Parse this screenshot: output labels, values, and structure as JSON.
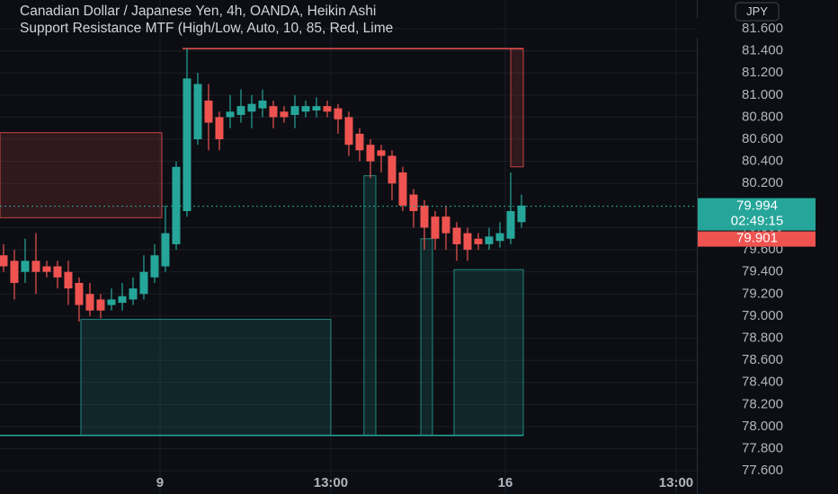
{
  "chart_data": {
    "type": "candlestick",
    "title": "Canadian Dollar / Japanese Yen, 4h, OANDA, Heikin Ashi",
    "subtitle": "Support Resistance MTF (High/Low, Auto, 10, 85, Red, Lime",
    "currency": "JPY",
    "up_color": "#26a69a",
    "down_color": "#ef5350",
    "open": [
      79.55,
      79.5,
      79.4,
      79.5,
      79.45,
      79.45,
      79.4,
      79.3,
      79.2,
      79.15,
      79.1,
      79.12,
      79.15,
      79.2,
      79.35,
      79.45,
      79.65,
      79.95,
      80.6,
      80.95,
      80.8,
      80.8,
      80.82,
      80.85,
      80.88,
      80.9,
      80.85,
      80.82,
      80.85,
      80.86,
      80.9,
      80.88,
      80.8,
      80.65,
      80.55,
      80.5,
      80.45,
      80.3,
      80.1,
      80.0,
      79.9,
      79.9,
      79.8,
      79.75,
      79.7,
      79.65,
      79.68,
      79.7,
      79.85
    ],
    "high": [
      79.65,
      79.6,
      79.7,
      79.75,
      79.5,
      79.5,
      79.5,
      79.35,
      79.3,
      79.2,
      79.25,
      79.3,
      79.35,
      79.55,
      79.65,
      80.0,
      80.4,
      81.42,
      81.2,
      81.1,
      80.85,
      81.0,
      81.05,
      81.0,
      81.05,
      80.95,
      80.9,
      81.0,
      80.95,
      80.98,
      80.95,
      80.92,
      80.85,
      80.7,
      80.6,
      80.55,
      80.5,
      80.35,
      80.15,
      80.05,
      79.95,
      80.0,
      79.85,
      79.8,
      79.75,
      79.8,
      79.85,
      80.3,
      80.1
    ],
    "low": [
      79.4,
      79.15,
      79.3,
      79.2,
      79.35,
      79.25,
      79.1,
      78.95,
      79.0,
      78.98,
      79.05,
      79.05,
      79.1,
      79.15,
      79.3,
      79.4,
      79.6,
      79.9,
      80.55,
      80.5,
      80.5,
      80.7,
      80.75,
      80.7,
      80.8,
      80.7,
      80.75,
      80.7,
      80.8,
      80.8,
      80.8,
      80.65,
      80.45,
      80.4,
      80.25,
      80.3,
      80.05,
      79.95,
      79.8,
      79.6,
      79.6,
      79.6,
      79.5,
      79.5,
      79.6,
      79.6,
      79.62,
      79.65,
      79.8
    ],
    "close": [
      79.45,
      79.3,
      79.5,
      79.4,
      79.4,
      79.35,
      79.25,
      79.1,
      79.05,
      79.05,
      79.15,
      79.18,
      79.25,
      79.4,
      79.55,
      79.75,
      80.35,
      81.15,
      81.1,
      80.75,
      80.6,
      80.85,
      80.9,
      80.92,
      80.95,
      80.8,
      80.8,
      80.9,
      80.9,
      80.9,
      80.85,
      80.78,
      80.55,
      80.5,
      80.4,
      80.45,
      80.2,
      80.0,
      79.95,
      79.8,
      79.7,
      79.75,
      79.65,
      79.6,
      79.65,
      79.72,
      79.75,
      79.95,
      80.0
    ],
    "zones": [
      {
        "x": [
          -0.33,
          14.67
        ],
        "y": [
          79.89,
          80.66
        ],
        "color": "#ef5350"
      },
      {
        "x": [
          47.0,
          48.17
        ],
        "y": [
          80.35,
          81.42
        ],
        "color": "#ef5350"
      },
      {
        "x": [
          7.17,
          30.33
        ],
        "y": [
          77.92,
          78.97
        ],
        "color": "#26a69a"
      },
      {
        "x": [
          33.4,
          34.5
        ],
        "y": [
          77.92,
          80.27
        ],
        "color": "#26a69a"
      },
      {
        "x": [
          38.67,
          39.75
        ],
        "y": [
          77.92,
          79.7
        ],
        "color": "#26a69a"
      },
      {
        "x": [
          41.75,
          48.17
        ],
        "y": [
          77.92,
          79.42
        ],
        "color": "#26a69a"
      }
    ],
    "levels": [
      {
        "x": [
          16.58,
          48.17
        ],
        "y": 81.42,
        "color": "#ef5350"
      },
      {
        "x": [
          -0.33,
          48.17
        ],
        "y": 77.92,
        "color": "#26a69a"
      }
    ],
    "last_price": 79.994,
    "countdown": "02:49:15",
    "prev_price": 79.901,
    "xlim": [
      -0.33,
      64.25
    ],
    "ylim": [
      77.39,
      81.86
    ],
    "xticks": [
      {
        "value": 14.5,
        "label": "9"
      },
      {
        "value": 30.33,
        "label": "13:00"
      },
      {
        "value": 46.5,
        "label": "16"
      },
      {
        "value": 62.33,
        "label": "13:00"
      }
    ],
    "yticks": [
      {
        "value": 81.6,
        "label": "81.600"
      },
      {
        "value": 81.4,
        "label": "81.400"
      },
      {
        "value": 81.2,
        "label": "81.200"
      },
      {
        "value": 81.0,
        "label": "81.000"
      },
      {
        "value": 80.8,
        "label": "80.800"
      },
      {
        "value": 80.6,
        "label": "80.600"
      },
      {
        "value": 80.4,
        "label": "80.400"
      },
      {
        "value": 80.2,
        "label": "80.200"
      },
      {
        "value": 79.8,
        "label": "79.800"
      },
      {
        "value": 79.6,
        "label": "79.600"
      },
      {
        "value": 79.4,
        "label": "79.400"
      },
      {
        "value": 79.2,
        "label": "79.200"
      },
      {
        "value": 79.0,
        "label": "79.000"
      },
      {
        "value": 78.8,
        "label": "78.800"
      },
      {
        "value": 78.6,
        "label": "78.600"
      },
      {
        "value": 78.4,
        "label": "78.400"
      },
      {
        "value": 78.2,
        "label": "78.200"
      },
      {
        "value": 78.0,
        "label": "78.000"
      },
      {
        "value": 77.8,
        "label": "77.800"
      },
      {
        "value": 77.6,
        "label": "77.600"
      }
    ],
    "grid": true
  }
}
